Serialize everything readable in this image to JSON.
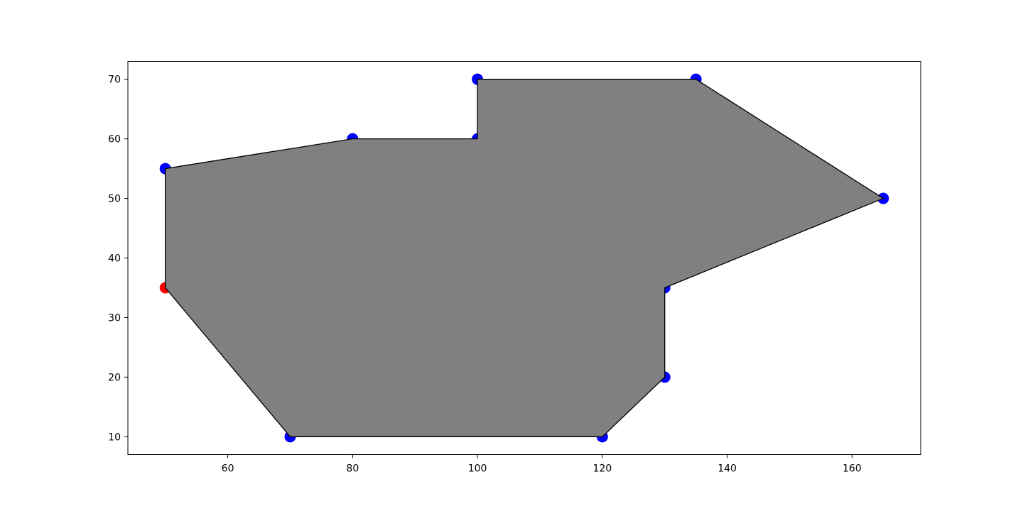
{
  "chart_data": {
    "type": "scatter",
    "title": "",
    "xlabel": "",
    "ylabel": "",
    "xlim": [
      44,
      171
    ],
    "ylim": [
      7,
      73
    ],
    "xticks": [
      60,
      80,
      100,
      120,
      140,
      160
    ],
    "yticks": [
      10,
      20,
      30,
      40,
      50,
      60,
      70
    ],
    "grid": false,
    "polygon": {
      "fill": "#808080",
      "edge": "#000000",
      "vertices": [
        [
          50,
          35
        ],
        [
          70,
          10
        ],
        [
          120,
          10
        ],
        [
          130,
          20
        ],
        [
          130,
          35
        ],
        [
          165,
          50
        ],
        [
          135,
          70
        ],
        [
          100,
          70
        ],
        [
          100,
          60
        ],
        [
          80,
          60
        ],
        [
          50,
          55
        ]
      ]
    },
    "series": [
      {
        "color": "#0000ff",
        "points": [
          [
            100,
            70
          ],
          [
            135,
            70
          ],
          [
            80,
            60
          ],
          [
            100,
            60
          ],
          [
            50,
            55
          ],
          [
            165,
            50
          ],
          [
            130,
            35
          ],
          [
            130,
            20
          ],
          [
            70,
            10
          ],
          [
            120,
            10
          ]
        ]
      },
      {
        "color": "#ff0000",
        "points": [
          [
            50,
            35
          ]
        ]
      }
    ]
  }
}
